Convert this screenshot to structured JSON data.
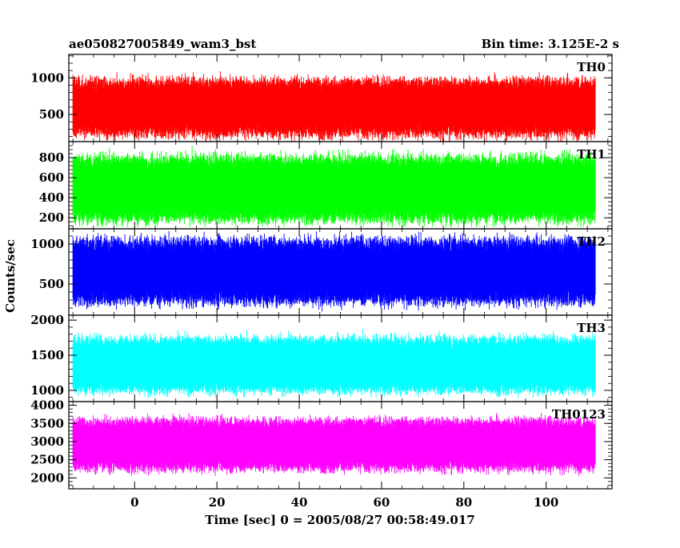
{
  "header": {
    "left": "ae050827005849_wam3_bst",
    "right": "Bin time: 3.125E-2 s"
  },
  "chart_data": {
    "type": "line",
    "xlabel": "Time [sec] 0 = 2005/08/27 00:58:49.017",
    "ylabel": "Counts/sec",
    "xlim": [
      -16,
      116
    ],
    "data_x_range": [
      -15,
      112
    ],
    "x_ticks": [
      0,
      20,
      40,
      60,
      80,
      100
    ],
    "x_tick_labels": [
      "0",
      "20",
      "40",
      "60",
      "80",
      "100"
    ],
    "grid": false,
    "panels": [
      {
        "name": "TH0",
        "color": "#ff0000",
        "ylim": [
          130,
          1320
        ],
        "y_ticks": [
          500,
          1000
        ],
        "y_tick_labels": [
          "500",
          "1000"
        ],
        "mean": 580,
        "typical_min": 240,
        "typical_max": 950,
        "extreme_min": 130,
        "extreme_max": 1310
      },
      {
        "name": "TH1",
        "color": "#00ff00",
        "ylim": [
          90,
          960
        ],
        "y_ticks": [
          200,
          400,
          600,
          800
        ],
        "y_tick_labels": [
          "200",
          "400",
          "600",
          "800"
        ],
        "mean": 480,
        "typical_min": 190,
        "typical_max": 790,
        "extreme_min": 110,
        "extreme_max": 940
      },
      {
        "name": "TH2",
        "color": "#0000ff",
        "ylim": [
          110,
          1190
        ],
        "y_ticks": [
          500,
          1000
        ],
        "y_tick_labels": [
          "500",
          "1000"
        ],
        "mean": 640,
        "typical_min": 290,
        "typical_max": 1030,
        "extreme_min": 150,
        "extreme_max": 1180
      },
      {
        "name": "TH3",
        "color": "#00ffff",
        "ylim": [
          840,
          2070
        ],
        "y_ticks": [
          1000,
          1500,
          2000
        ],
        "y_tick_labels": [
          "1000",
          "1500",
          "2000"
        ],
        "mean": 1340,
        "typical_min": 1010,
        "typical_max": 1720,
        "extreme_min": 900,
        "extreme_max": 2000
      },
      {
        "name": "TH0123",
        "color": "#ff00ff",
        "ylim": [
          1700,
          4100
        ],
        "y_ticks": [
          2000,
          2500,
          3000,
          3500,
          4000
        ],
        "y_tick_labels": [
          "2000",
          "2500",
          "3000",
          "3500",
          "4000"
        ],
        "mean": 2920,
        "typical_min": 2280,
        "typical_max": 3560,
        "extreme_min": 1720,
        "extreme_max": 3950
      }
    ]
  }
}
